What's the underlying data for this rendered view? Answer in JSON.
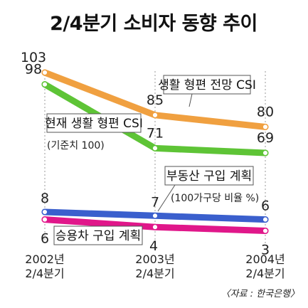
{
  "chart_data": {
    "type": "line",
    "title": "2/4분기 소비자 동향 추이",
    "categories": [
      "2002년 2/4분기",
      "2003년 2/4분기",
      "2004년 2/4분기"
    ],
    "category_lines": [
      [
        "2002년",
        "2/4분기"
      ],
      [
        "2003년",
        "2/4분기"
      ],
      [
        "2004년",
        "2/4분기"
      ]
    ],
    "series": [
      {
        "name": "생활 형편 전망 CSI",
        "values": [
          103,
          85,
          80
        ],
        "color": "#f0a040"
      },
      {
        "name": "현재 생활 형편 CSI",
        "note": "(기준치 100)",
        "values": [
          98,
          71,
          69
        ],
        "color": "#5ec436"
      },
      {
        "name": "부동산 구입 계획",
        "note": "(100가구당 비율 %)",
        "values": [
          8,
          7,
          6
        ],
        "color": "#3a5fcd"
      },
      {
        "name": "승용차 구입 계획",
        "values": [
          6,
          4,
          3
        ],
        "color": "#e0178a"
      }
    ],
    "source": "〈자료 : 한국은행〉",
    "grid": false,
    "legend": "inline labels"
  }
}
